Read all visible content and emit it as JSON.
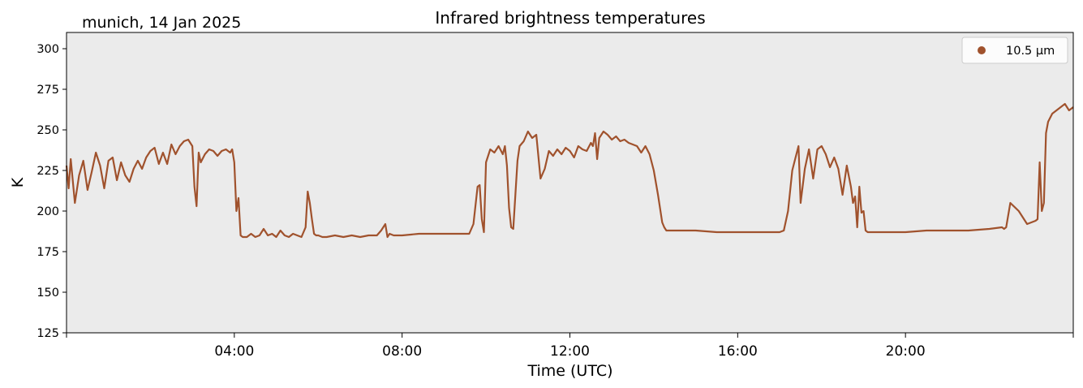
{
  "location_date": "munich, 14 Jan 2025",
  "chart_data": {
    "type": "line",
    "title": "Infrared brightness temperatures",
    "xlabel": "Time (UTC)",
    "ylabel": "K",
    "xlim_hours": [
      0,
      24
    ],
    "ylim": [
      125,
      310
    ],
    "y_ticks": [
      125,
      150,
      175,
      200,
      225,
      250,
      275,
      300
    ],
    "x_ticks": [
      {
        "hour": 4,
        "label": "04:00"
      },
      {
        "hour": 8,
        "label": "08:00"
      },
      {
        "hour": 12,
        "label": "12:00"
      },
      {
        "hour": 16,
        "label": "16:00"
      },
      {
        "hour": 20,
        "label": "20:00"
      }
    ],
    "grid": false,
    "background_color": "#ebebeb",
    "legend_position": "top-right",
    "series": [
      {
        "name": "10.5 µm",
        "color": "#a0522d",
        "x_hours": [
          0.0,
          0.05,
          0.1,
          0.2,
          0.3,
          0.4,
          0.5,
          0.6,
          0.7,
          0.8,
          0.9,
          1.0,
          1.1,
          1.2,
          1.3,
          1.4,
          1.5,
          1.6,
          1.7,
          1.8,
          1.9,
          2.0,
          2.1,
          2.2,
          2.3,
          2.4,
          2.5,
          2.6,
          2.7,
          2.8,
          2.9,
          3.0,
          3.05,
          3.1,
          3.15,
          3.2,
          3.3,
          3.4,
          3.5,
          3.6,
          3.7,
          3.8,
          3.9,
          3.95,
          4.0,
          4.05,
          4.1,
          4.15,
          4.2,
          4.3,
          4.4,
          4.5,
          4.6,
          4.7,
          4.8,
          4.9,
          5.0,
          5.1,
          5.2,
          5.3,
          5.4,
          5.5,
          5.6,
          5.7,
          5.75,
          5.8,
          5.85,
          5.9,
          5.95,
          6.0,
          6.1,
          6.2,
          6.4,
          6.6,
          6.8,
          7.0,
          7.2,
          7.4,
          7.5,
          7.6,
          7.65,
          7.7,
          7.8,
          8.0,
          8.4,
          8.8,
          9.2,
          9.5,
          9.6,
          9.7,
          9.8,
          9.85,
          9.9,
          9.95,
          10.0,
          10.1,
          10.2,
          10.3,
          10.4,
          10.45,
          10.5,
          10.55,
          10.6,
          10.65,
          10.7,
          10.75,
          10.8,
          10.9,
          11.0,
          11.1,
          11.2,
          11.3,
          11.4,
          11.5,
          11.6,
          11.7,
          11.8,
          11.9,
          12.0,
          12.1,
          12.2,
          12.3,
          12.4,
          12.5,
          12.55,
          12.6,
          12.65,
          12.7,
          12.8,
          12.9,
          13.0,
          13.1,
          13.2,
          13.3,
          13.4,
          13.5,
          13.6,
          13.7,
          13.8,
          13.9,
          14.0,
          14.1,
          14.2,
          14.25,
          14.3,
          14.5,
          15.0,
          15.5,
          16.0,
          16.5,
          17.0,
          17.1,
          17.2,
          17.3,
          17.4,
          17.45,
          17.5,
          17.6,
          17.7,
          17.8,
          17.9,
          18.0,
          18.1,
          18.2,
          18.3,
          18.4,
          18.5,
          18.6,
          18.7,
          18.75,
          18.8,
          18.85,
          18.9,
          18.95,
          19.0,
          19.05,
          19.1,
          19.2,
          19.5,
          20.0,
          20.5,
          21.0,
          21.5,
          22.0,
          22.3,
          22.35,
          22.4,
          22.5,
          22.7,
          22.9,
          23.0,
          23.1,
          23.15,
          23.2,
          23.25,
          23.3,
          23.35,
          23.4,
          23.5,
          23.6,
          23.7,
          23.8,
          23.9,
          24.0
        ],
        "values": [
          228,
          214,
          232,
          205,
          222,
          231,
          213,
          224,
          236,
          228,
          214,
          231,
          233,
          219,
          230,
          222,
          218,
          226,
          231,
          226,
          233,
          237,
          239,
          229,
          236,
          229,
          241,
          235,
          240,
          243,
          244,
          240,
          215,
          203,
          236,
          230,
          235,
          238,
          237,
          234,
          237,
          238,
          236,
          238,
          230,
          200,
          208,
          185,
          184,
          184,
          186,
          184,
          185,
          189,
          185,
          186,
          184,
          188,
          185,
          184,
          186,
          185,
          184,
          190,
          212,
          205,
          195,
          186,
          185,
          185,
          184,
          184,
          185,
          184,
          185,
          184,
          185,
          185,
          188,
          192,
          184,
          186,
          185,
          185,
          186,
          186,
          186,
          186,
          186,
          192,
          215,
          216,
          195,
          187,
          230,
          238,
          236,
          240,
          235,
          240,
          228,
          202,
          190,
          189,
          210,
          231,
          240,
          243,
          249,
          245,
          247,
          220,
          226,
          237,
          234,
          238,
          235,
          239,
          237,
          233,
          240,
          238,
          237,
          242,
          240,
          248,
          232,
          245,
          249,
          247,
          244,
          246,
          243,
          244,
          242,
          241,
          240,
          236,
          240,
          235,
          225,
          210,
          193,
          190,
          188,
          188,
          188,
          187,
          187,
          187,
          187,
          188,
          200,
          225,
          235,
          240,
          205,
          226,
          238,
          220,
          238,
          240,
          235,
          227,
          233,
          226,
          210,
          228,
          215,
          205,
          209,
          190,
          215,
          199,
          200,
          188,
          187,
          187,
          187,
          187,
          188,
          188,
          188,
          189,
          190,
          189,
          190,
          205,
          200,
          192,
          193,
          194,
          195,
          230,
          200,
          205,
          248,
          255,
          260,
          262,
          264,
          266,
          262,
          264
        ]
      }
    ]
  }
}
